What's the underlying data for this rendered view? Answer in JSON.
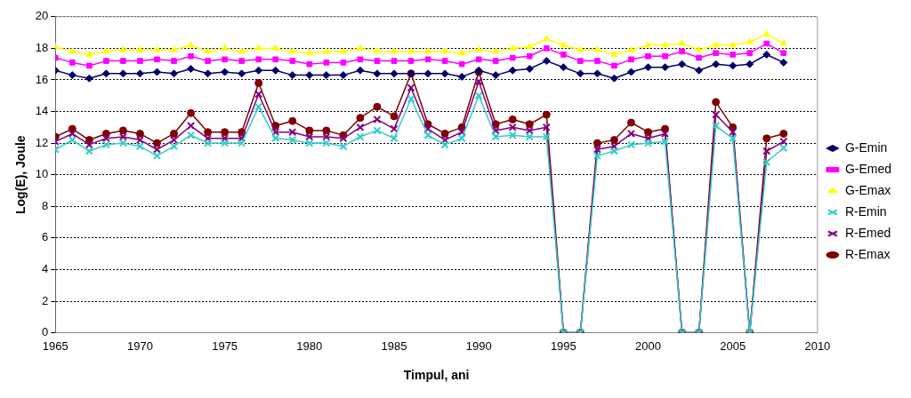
{
  "chart_data": {
    "type": "line",
    "xlabel": "Timpul, ani",
    "ylabel": "Log(E), Joule",
    "x": [
      1965,
      1966,
      1967,
      1968,
      1969,
      1970,
      1971,
      1972,
      1973,
      1974,
      1975,
      1976,
      1977,
      1978,
      1979,
      1980,
      1981,
      1982,
      1983,
      1984,
      1985,
      1986,
      1987,
      1988,
      1989,
      1990,
      1991,
      1992,
      1993,
      1994,
      1995,
      1996,
      1997,
      1998,
      1999,
      2000,
      2001,
      2002,
      2003,
      2004,
      2005,
      2006,
      2007,
      2008
    ],
    "xlim": [
      1965,
      2010
    ],
    "xticks": [
      1965,
      1970,
      1975,
      1980,
      1985,
      1990,
      1995,
      2000,
      2005,
      2010
    ],
    "ylim": [
      0,
      20
    ],
    "yticks": [
      0,
      2,
      4,
      6,
      8,
      10,
      12,
      14,
      16,
      18,
      20
    ],
    "grid": "y",
    "legend": "right",
    "line_style": "solid",
    "series": [
      {
        "name": "G-Emin",
        "color": "#000066",
        "marker": "diamond",
        "values": [
          16.6,
          16.3,
          16.1,
          16.4,
          16.4,
          16.4,
          16.5,
          16.4,
          16.7,
          16.4,
          16.5,
          16.4,
          16.6,
          16.6,
          16.3,
          16.3,
          16.3,
          16.3,
          16.6,
          16.4,
          16.4,
          16.4,
          16.4,
          16.4,
          16.2,
          16.6,
          16.3,
          16.6,
          16.7,
          17.2,
          16.8,
          16.4,
          16.4,
          16.1,
          16.5,
          16.8,
          16.8,
          17.0,
          16.6,
          17.0,
          16.9,
          17.0,
          17.6,
          17.1
        ]
      },
      {
        "name": "G-Emed",
        "color": "#ff00ff",
        "marker": "square",
        "values": [
          17.4,
          17.1,
          16.9,
          17.2,
          17.2,
          17.2,
          17.3,
          17.2,
          17.5,
          17.2,
          17.3,
          17.2,
          17.3,
          17.3,
          17.2,
          17.0,
          17.1,
          17.1,
          17.3,
          17.2,
          17.2,
          17.2,
          17.3,
          17.2,
          17.0,
          17.3,
          17.2,
          17.4,
          17.5,
          18.0,
          17.6,
          17.2,
          17.2,
          16.9,
          17.3,
          17.5,
          17.5,
          17.8,
          17.4,
          17.7,
          17.6,
          17.7,
          18.3,
          17.7
        ]
      },
      {
        "name": "G-Emax",
        "color": "#ffff00",
        "marker": "triangle",
        "values": [
          18.1,
          17.8,
          17.6,
          17.8,
          17.9,
          17.9,
          17.9,
          17.9,
          18.2,
          17.8,
          18.0,
          17.8,
          18.0,
          18.0,
          17.8,
          17.7,
          17.8,
          17.8,
          18.0,
          17.8,
          17.8,
          17.8,
          17.8,
          17.8,
          17.7,
          17.9,
          17.8,
          18.0,
          18.1,
          18.6,
          18.2,
          17.9,
          17.9,
          17.6,
          17.9,
          18.2,
          18.2,
          18.3,
          17.9,
          18.2,
          18.2,
          18.4,
          18.9,
          18.3
        ]
      },
      {
        "name": "R-Emin",
        "color": "#33cccc",
        "marker": "cross",
        "values": [
          11.6,
          12.2,
          11.5,
          11.9,
          12.0,
          11.8,
          11.2,
          11.8,
          12.5,
          12.0,
          12.0,
          12.0,
          14.3,
          12.3,
          12.2,
          12.0,
          12.0,
          11.8,
          12.4,
          12.8,
          12.3,
          14.8,
          12.5,
          11.9,
          12.3,
          15.0,
          12.4,
          12.5,
          12.4,
          12.4,
          0,
          0,
          11.2,
          11.5,
          11.9,
          12.0,
          12.1,
          0,
          0,
          13.1,
          12.3,
          0,
          10.8,
          11.7
        ]
      },
      {
        "name": "R-Emed",
        "color": "#800080",
        "marker": "cross",
        "values": [
          12.1,
          12.6,
          11.9,
          12.3,
          12.4,
          12.2,
          11.6,
          12.2,
          13.1,
          12.3,
          12.3,
          12.3,
          15.1,
          12.7,
          12.7,
          12.4,
          12.4,
          12.3,
          13.0,
          13.5,
          12.9,
          15.5,
          12.9,
          12.2,
          12.7,
          15.9,
          12.8,
          13.0,
          12.8,
          13.0,
          0,
          0,
          11.6,
          11.8,
          12.6,
          12.3,
          12.6,
          0,
          0,
          13.8,
          12.7,
          0,
          11.5,
          12.1
        ]
      },
      {
        "name": "R-Emax",
        "color": "#800000",
        "marker": "circle",
        "values": [
          12.4,
          12.9,
          12.2,
          12.6,
          12.8,
          12.6,
          12.0,
          12.6,
          13.9,
          12.7,
          12.7,
          12.7,
          15.8,
          13.1,
          13.4,
          12.8,
          12.8,
          12.5,
          13.6,
          14.3,
          13.7,
          16.4,
          13.2,
          12.6,
          13.0,
          16.5,
          13.2,
          13.5,
          13.2,
          13.8,
          0,
          0,
          12.0,
          12.2,
          13.3,
          12.7,
          12.9,
          0,
          0,
          14.6,
          13.0,
          0,
          12.3,
          12.6
        ]
      }
    ]
  }
}
